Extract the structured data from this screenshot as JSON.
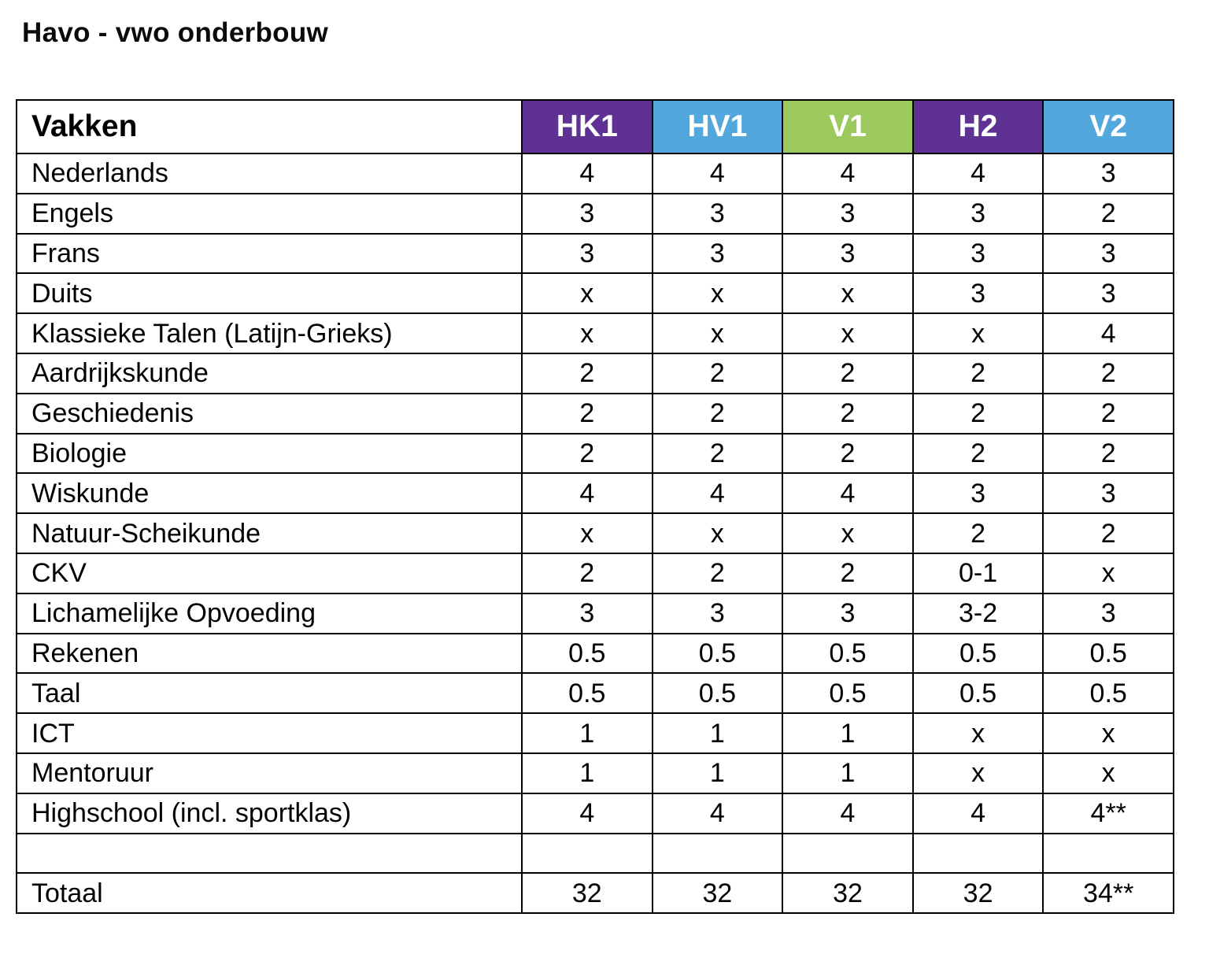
{
  "title": "Havo - vwo onderbouw",
  "table": {
    "header": {
      "label": "Vakken",
      "columns": [
        {
          "label": "HK1",
          "color": "#5E3192"
        },
        {
          "label": "HV1",
          "color": "#52A7DC"
        },
        {
          "label": "V1",
          "color": "#9CC95E"
        },
        {
          "label": "H2",
          "color": "#5E3192"
        },
        {
          "label": "V2",
          "color": "#52A7DC"
        }
      ]
    },
    "rows": [
      {
        "subject": "Nederlands",
        "values": [
          "4",
          "4",
          "4",
          "4",
          "3"
        ]
      },
      {
        "subject": "Engels",
        "values": [
          "3",
          "3",
          "3",
          "3",
          "2"
        ]
      },
      {
        "subject": "Frans",
        "values": [
          "3",
          "3",
          "3",
          "3",
          "3"
        ]
      },
      {
        "subject": "Duits",
        "values": [
          "x",
          "x",
          "x",
          "3",
          "3"
        ]
      },
      {
        "subject": "Klassieke Talen (Latijn-Grieks)",
        "values": [
          "x",
          "x",
          "x",
          "x",
          "4"
        ]
      },
      {
        "subject": "Aardrijkskunde",
        "values": [
          "2",
          "2",
          "2",
          "2",
          "2"
        ]
      },
      {
        "subject": "Geschiedenis",
        "values": [
          "2",
          "2",
          "2",
          "2",
          "2"
        ]
      },
      {
        "subject": "Biologie",
        "values": [
          "2",
          "2",
          "2",
          "2",
          "2"
        ]
      },
      {
        "subject": "Wiskunde",
        "values": [
          "4",
          "4",
          "4",
          "3",
          "3"
        ]
      },
      {
        "subject": "Natuur-Scheikunde",
        "values": [
          "x",
          "x",
          "x",
          "2",
          "2"
        ]
      },
      {
        "subject": "CKV",
        "values": [
          "2",
          "2",
          "2",
          "0-1",
          "x"
        ]
      },
      {
        "subject": "Lichamelijke Opvoeding",
        "values": [
          "3",
          "3",
          "3",
          "3-2",
          "3"
        ]
      },
      {
        "subject": "Rekenen",
        "values": [
          "0.5",
          "0.5",
          "0.5",
          "0.5",
          "0.5"
        ]
      },
      {
        "subject": "Taal",
        "values": [
          "0.5",
          "0.5",
          "0.5",
          "0.5",
          "0.5"
        ]
      },
      {
        "subject": "ICT",
        "values": [
          "1",
          "1",
          "1",
          "x",
          "x"
        ]
      },
      {
        "subject": "Mentoruur",
        "values": [
          "1",
          "1",
          "1",
          "x",
          "x"
        ]
      },
      {
        "subject": "Highschool (incl. sportklas)",
        "values": [
          "4",
          "4",
          "4",
          "4",
          "4**"
        ]
      }
    ],
    "spacer_row": {
      "subject": "",
      "values": [
        "",
        "",
        "",
        "",
        ""
      ]
    },
    "total_row": {
      "subject": "Totaal",
      "values": [
        "32",
        "32",
        "32",
        "32",
        "34**"
      ]
    }
  }
}
